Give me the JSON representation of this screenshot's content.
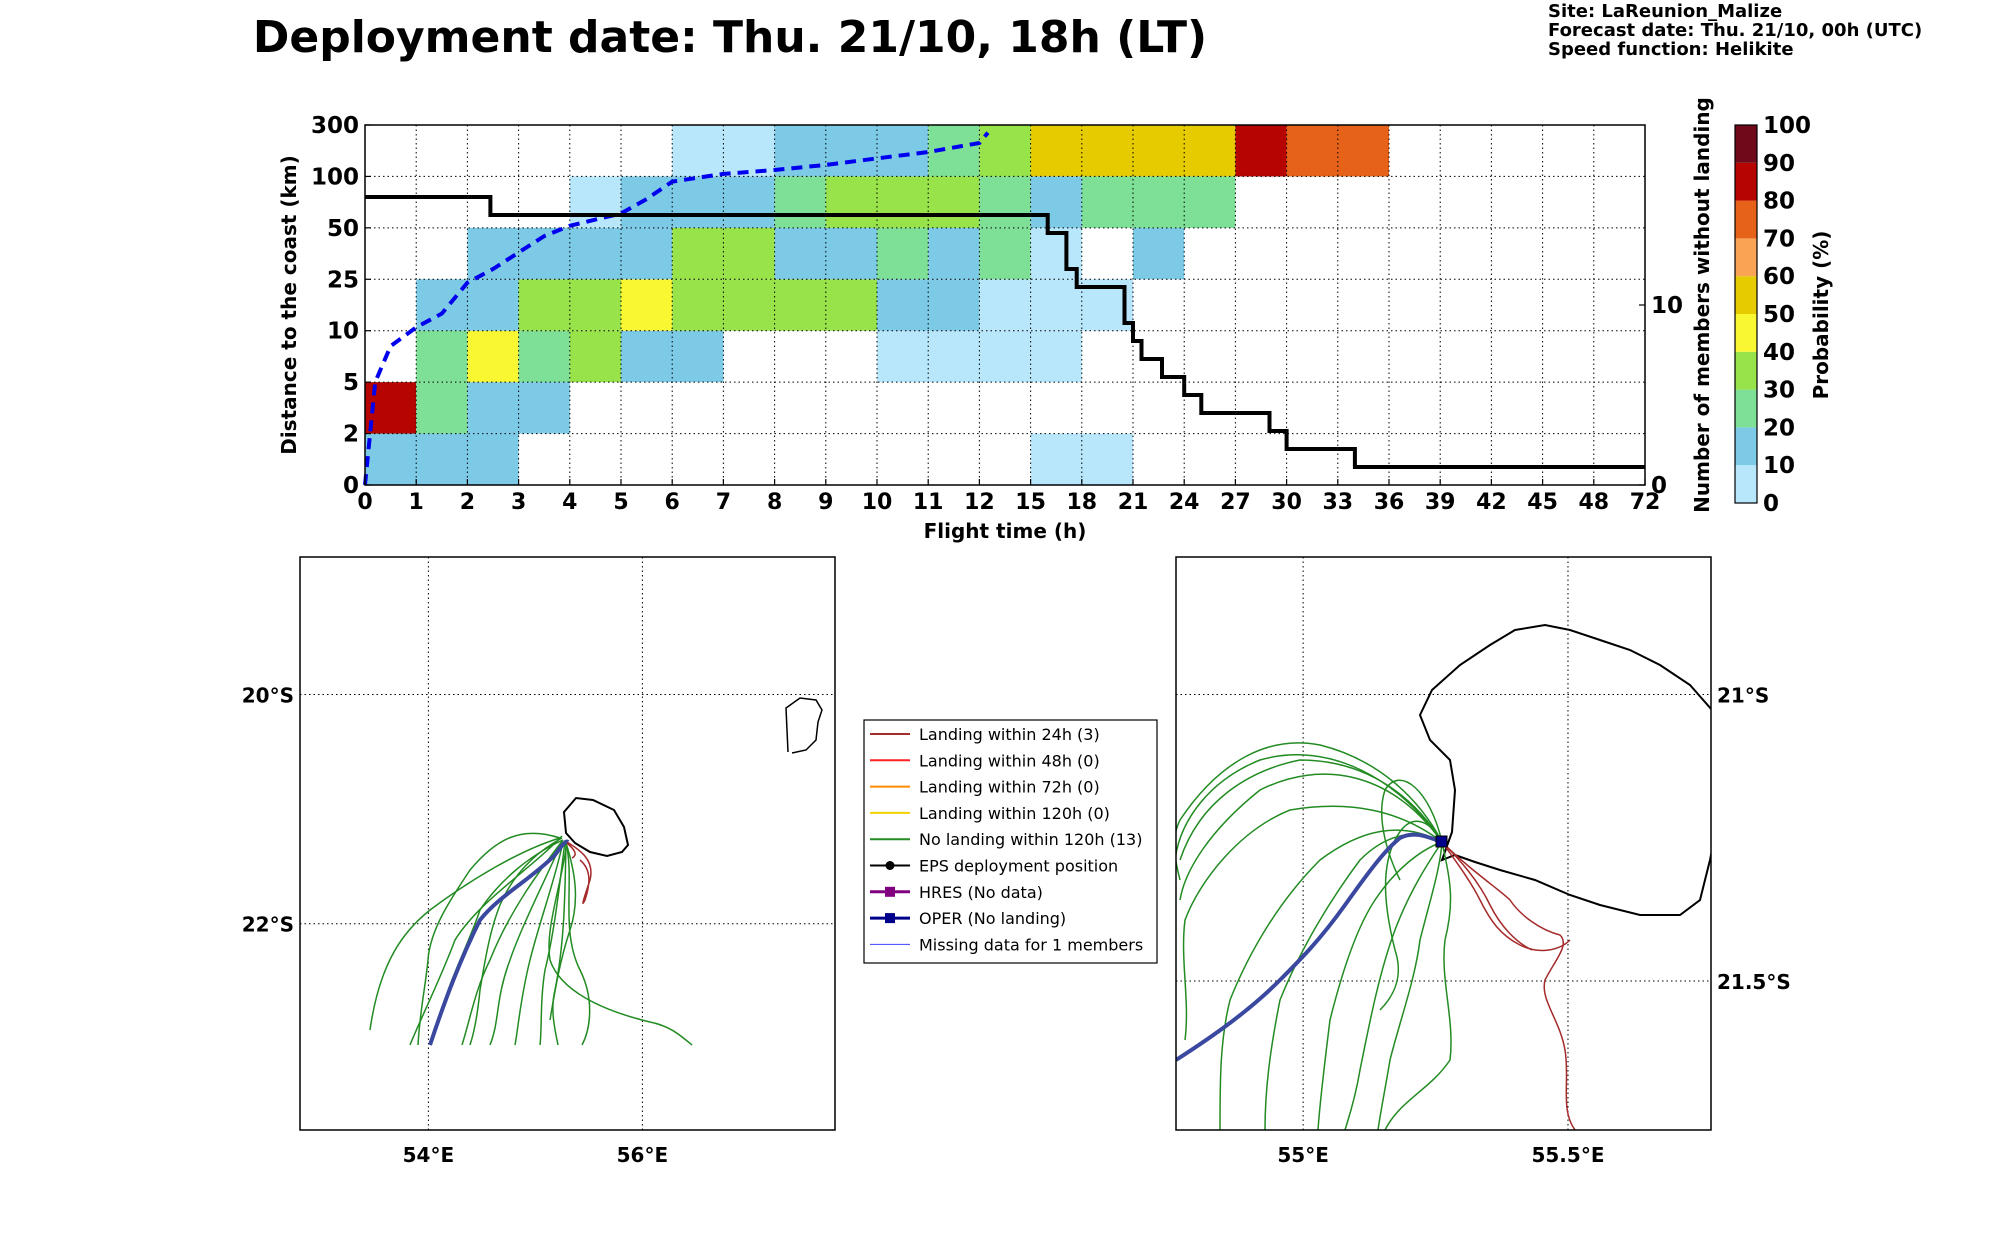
{
  "header": {
    "title": "Deployment date: Thu. 21/10, 18h (LT)",
    "site": "Site: LaReunion_Malize",
    "forecast": "Forecast date: Thu. 21/10, 00h (UTC)",
    "speed": "Speed function: Helikite"
  },
  "colors": {
    "bins": [
      "#b8e6fb",
      "#7ccae6",
      "#7ee096",
      "#98e24a",
      "#f8f732",
      "#e6cb00",
      "#f8a454",
      "#e56218",
      "#b60400",
      "#6e0a1a"
    ],
    "cumulative_line": "#0000ee",
    "members_line": "#000000",
    "landing24": "#a52a2a",
    "landing48": "#ff2020",
    "landing72": "#ff8c00",
    "landing120": "#f0d000",
    "nolanding": "#228b22",
    "eps": "#000000",
    "hres": "#800080",
    "oper": "#00008b",
    "missing": "#4040ff",
    "oper_track": "#3a48a0"
  },
  "chart_data": [
    {
      "type": "heatmap",
      "title": "Deployment date: Thu. 21/10, 18h (LT)",
      "xlabel": "Flight time (h)",
      "ylabel": "Distance to the coast (km)",
      "ylabel_right": "Number of members without landing",
      "colorbar_label": "Probability (%)",
      "x_ticks": [
        "0",
        "1",
        "2",
        "3",
        "4",
        "5",
        "6",
        "7",
        "8",
        "9",
        "10",
        "11",
        "12",
        "15",
        "18",
        "21",
        "24",
        "27",
        "30",
        "33",
        "36",
        "39",
        "42",
        "45",
        "48",
        "72"
      ],
      "y_ticks": [
        "0",
        "2",
        "5",
        "10",
        "25",
        "50",
        "100",
        "300"
      ],
      "right_ticks": [
        {
          "value": 0,
          "label": "0"
        },
        {
          "value": 10,
          "label": "10"
        }
      ],
      "right_ylim": [
        0,
        20
      ],
      "colorbar_ticks": [
        "0",
        "10",
        "20",
        "30",
        "40",
        "50",
        "60",
        "70",
        "80",
        "90",
        "100"
      ],
      "cells": [
        {
          "x0": 0,
          "x1": 3,
          "y0": 0,
          "y1": 2,
          "bin": 1
        },
        {
          "x0": 15,
          "x1": 21,
          "y0": 0,
          "y1": 2,
          "bin": 0
        },
        {
          "x0": 0,
          "x1": 1,
          "y0": 2,
          "y1": 5,
          "bin": 8
        },
        {
          "x0": 1,
          "x1": 2,
          "y0": 2,
          "y1": 5,
          "bin": 2
        },
        {
          "x0": 2,
          "x1": 4,
          "y0": 2,
          "y1": 5,
          "bin": 1
        },
        {
          "x0": 1,
          "x1": 2,
          "y0": 5,
          "y1": 10,
          "bin": 2
        },
        {
          "x0": 2,
          "x1": 3,
          "y0": 5,
          "y1": 10,
          "bin": 4
        },
        {
          "x0": 3,
          "x1": 4,
          "y0": 5,
          "y1": 10,
          "bin": 2
        },
        {
          "x0": 4,
          "x1": 5,
          "y0": 5,
          "y1": 10,
          "bin": 3
        },
        {
          "x0": 5,
          "x1": 7,
          "y0": 5,
          "y1": 10,
          "bin": 1
        },
        {
          "x0": 10,
          "x1": 18,
          "y0": 5,
          "y1": 10,
          "bin": 0
        },
        {
          "x0": 1,
          "x1": 3,
          "y0": 10,
          "y1": 25,
          "bin": 1
        },
        {
          "x0": 3,
          "x1": 5,
          "y0": 10,
          "y1": 25,
          "bin": 3
        },
        {
          "x0": 5,
          "x1": 6,
          "y0": 10,
          "y1": 25,
          "bin": 4
        },
        {
          "x0": 6,
          "x1": 10,
          "y0": 10,
          "y1": 25,
          "bin": 3
        },
        {
          "x0": 10,
          "x1": 12,
          "y0": 10,
          "y1": 25,
          "bin": 1
        },
        {
          "x0": 12,
          "x1": 21,
          "y0": 10,
          "y1": 25,
          "bin": 0
        },
        {
          "x0": 2,
          "x1": 6,
          "y0": 25,
          "y1": 50,
          "bin": 1
        },
        {
          "x0": 6,
          "x1": 8,
          "y0": 25,
          "y1": 50,
          "bin": 3
        },
        {
          "x0": 8,
          "x1": 10,
          "y0": 25,
          "y1": 50,
          "bin": 1
        },
        {
          "x0": 10,
          "x1": 11,
          "y0": 25,
          "y1": 50,
          "bin": 2
        },
        {
          "x0": 11,
          "x1": 12,
          "y0": 25,
          "y1": 50,
          "bin": 1
        },
        {
          "x0": 12,
          "x1": 15,
          "y0": 25,
          "y1": 50,
          "bin": 2
        },
        {
          "x0": 15,
          "x1": 18,
          "y0": 25,
          "y1": 50,
          "bin": 0
        },
        {
          "x0": 21,
          "x1": 24,
          "y0": 25,
          "y1": 50,
          "bin": 1
        },
        {
          "x0": 4,
          "x1": 5,
          "y0": 50,
          "y1": 100,
          "bin": 0
        },
        {
          "x0": 5,
          "x1": 8,
          "y0": 50,
          "y1": 100,
          "bin": 1
        },
        {
          "x0": 8,
          "x1": 9,
          "y0": 50,
          "y1": 100,
          "bin": 2
        },
        {
          "x0": 9,
          "x1": 12,
          "y0": 50,
          "y1": 100,
          "bin": 3
        },
        {
          "x0": 12,
          "x1": 15,
          "y0": 50,
          "y1": 100,
          "bin": 2
        },
        {
          "x0": 15,
          "x1": 18,
          "y0": 50,
          "y1": 100,
          "bin": 1
        },
        {
          "x0": 18,
          "x1": 27,
          "y0": 50,
          "y1": 100,
          "bin": 2
        },
        {
          "x0": 6,
          "x1": 8,
          "y0": 100,
          "y1": 300,
          "bin": 0
        },
        {
          "x0": 8,
          "x1": 11,
          "y0": 100,
          "y1": 300,
          "bin": 1
        },
        {
          "x0": 11,
          "x1": 12,
          "y0": 100,
          "y1": 300,
          "bin": 2
        },
        {
          "x0": 12,
          "x1": 15,
          "y0": 100,
          "y1": 300,
          "bin": 3
        },
        {
          "x0": 15,
          "x1": 27,
          "y0": 100,
          "y1": 300,
          "bin": 5
        },
        {
          "x0": 27,
          "x1": 30,
          "y0": 100,
          "y1": 300,
          "bin": 8
        },
        {
          "x0": 30,
          "x1": 36,
          "y0": 100,
          "y1": 300,
          "bin": 7
        }
      ],
      "cumulative_line": {
        "x": [
          0,
          0.2,
          0.5,
          1,
          1.5,
          2,
          2.5,
          3,
          3.5,
          4,
          4.5,
          5,
          5.5,
          6,
          7,
          8,
          9,
          10,
          11,
          12,
          12.5
        ],
        "y": [
          0,
          5,
          8.5,
          11,
          15,
          24,
          30,
          38,
          46,
          52,
          58,
          64,
          78,
          95,
          110,
          125,
          145,
          170,
          195,
          230,
          270
        ]
      },
      "members_line": {
        "x": [
          0,
          2.45,
          2.45,
          16,
          16,
          17.1,
          17.1,
          17.7,
          17.7,
          20.5,
          20.5,
          21,
          21,
          21.5,
          21.5,
          22.7,
          22.7,
          24,
          24,
          25,
          25,
          29,
          29,
          30,
          30,
          34,
          34,
          72
        ],
        "y": [
          16,
          16,
          15,
          15,
          14,
          14,
          12,
          12,
          11,
          11,
          9,
          9,
          8,
          8,
          7,
          7,
          6,
          6,
          5,
          5,
          4,
          4,
          3,
          3,
          2,
          2,
          1,
          1
        ]
      }
    }
  ],
  "left_map": {
    "lat_labels": [
      {
        "lat": -20,
        "label": "20°S"
      },
      {
        "lat": -22,
        "label": "22°S"
      }
    ],
    "lon_labels": [
      {
        "lon": 54,
        "label": "54°E"
      },
      {
        "lon": 56,
        "label": "56°E"
      }
    ]
  },
  "right_map": {
    "lat_labels": [
      {
        "lat": -21,
        "label": "21°S"
      },
      {
        "lat": -21.5,
        "label": "21.5°S"
      }
    ],
    "lon_labels": [
      {
        "lon": 55,
        "label": "55°E"
      },
      {
        "lon": 55.5,
        "label": "55.5°E"
      }
    ]
  },
  "legend": {
    "items": [
      {
        "label": "Landing within 24h (3)",
        "color_key": "landing24",
        "marker": "none",
        "width": 2
      },
      {
        "label": "Landing within 48h (0)",
        "color_key": "landing48",
        "marker": "none",
        "width": 2
      },
      {
        "label": "Landing within 72h (0)",
        "color_key": "landing72",
        "marker": "none",
        "width": 2
      },
      {
        "label": "Landing within 120h (0)",
        "color_key": "landing120",
        "marker": "none",
        "width": 2
      },
      {
        "label": "No landing within 120h (13)",
        "color_key": "nolanding",
        "marker": "none",
        "width": 2
      },
      {
        "label": "EPS deployment position",
        "color_key": "eps",
        "marker": "circle",
        "width": 2
      },
      {
        "label": "HRES (No data)",
        "color_key": "hres",
        "marker": "square",
        "width": 3
      },
      {
        "label": "OPER (No landing)",
        "color_key": "oper",
        "marker": "square",
        "width": 3
      },
      {
        "label": "Missing data for 1 members",
        "color_key": "missing",
        "marker": "none",
        "width": 1
      }
    ]
  }
}
